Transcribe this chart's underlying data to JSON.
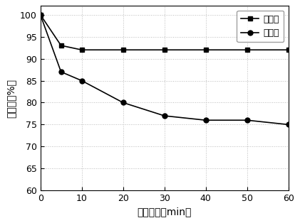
{
  "control_x": [
    0,
    5,
    10,
    20,
    30,
    40,
    50,
    60
  ],
  "control_y": [
    100,
    93,
    92,
    92,
    92,
    92,
    92,
    92
  ],
  "experiment_x": [
    0,
    5,
    10,
    20,
    30,
    40,
    50,
    60
  ],
  "experiment_y": [
    100,
    87,
    85,
    80,
    77,
    76,
    76,
    75
  ],
  "xlabel": "沉降时间（min）",
  "ylabel": "沉降比（%）",
  "legend_control": "对照组",
  "legend_experiment": "试验组",
  "xlim": [
    0,
    60
  ],
  "ylim": [
    60,
    102
  ],
  "yticks": [
    60,
    65,
    70,
    75,
    80,
    85,
    90,
    95,
    100
  ],
  "xticks": [
    0,
    10,
    20,
    30,
    40,
    50,
    60
  ],
  "line_color": "#000000",
  "marker_color": "#000000",
  "background_color": "#ffffff",
  "tick_color": "#000000",
  "label_color": "#000000",
  "grid_color": "#bbbbbb",
  "font_size_label": 10,
  "font_size_tick": 9,
  "font_size_legend": 9
}
